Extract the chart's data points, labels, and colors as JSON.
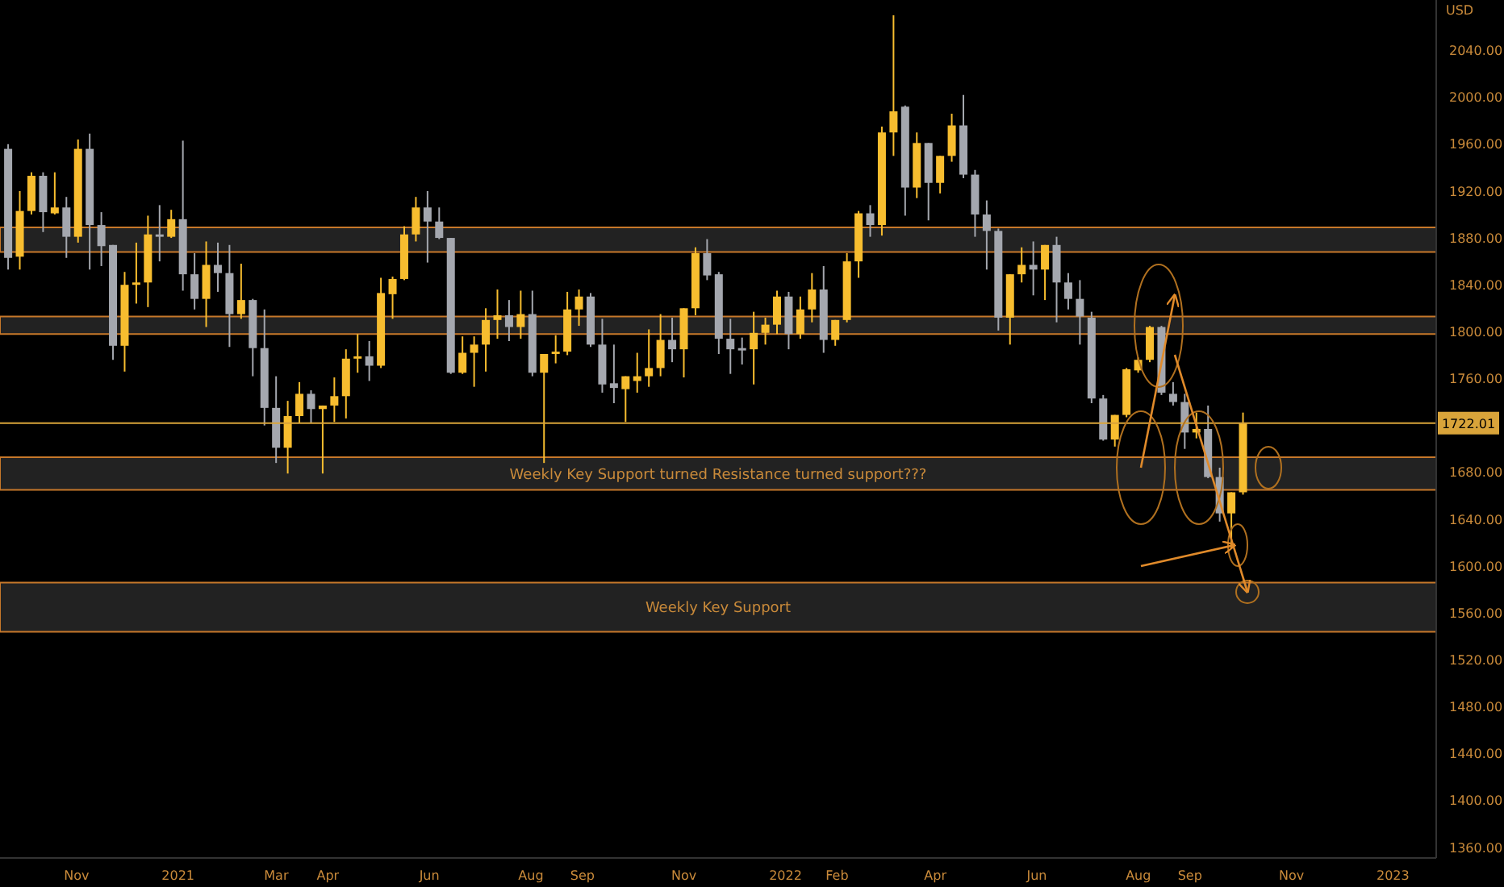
{
  "chart_data": {
    "type": "candlestick",
    "ylabel": "USD",
    "x": [
      "2020-09-21",
      "2020-09-28",
      "2020-10-05",
      "2020-10-12",
      "2020-10-19",
      "2020-10-26",
      "2020-11-02",
      "2020-11-09",
      "2020-11-16",
      "2020-11-23",
      "2020-11-30",
      "2020-12-07",
      "2020-12-14",
      "2020-12-21",
      "2020-12-28",
      "2021-01-04",
      "2021-01-11",
      "2021-01-18",
      "2021-01-25",
      "2021-02-01",
      "2021-02-08",
      "2021-02-15",
      "2021-02-22",
      "2021-03-01",
      "2021-03-08",
      "2021-03-15",
      "2021-03-22",
      "2021-03-29",
      "2021-04-05",
      "2021-04-12",
      "2021-04-19",
      "2021-04-26",
      "2021-05-03",
      "2021-05-10",
      "2021-05-17",
      "2021-05-24",
      "2021-05-31",
      "2021-06-07",
      "2021-06-14",
      "2021-06-21",
      "2021-06-28",
      "2021-07-05",
      "2021-07-12",
      "2021-07-19",
      "2021-07-26",
      "2021-08-02",
      "2021-08-09",
      "2021-08-16",
      "2021-08-23",
      "2021-08-30",
      "2021-09-06",
      "2021-09-13",
      "2021-09-20",
      "2021-09-27",
      "2021-10-04",
      "2021-10-11",
      "2021-10-18",
      "2021-10-25",
      "2021-11-01",
      "2021-11-08",
      "2021-11-15",
      "2021-11-22",
      "2021-11-29",
      "2021-12-06",
      "2021-12-13",
      "2021-12-20",
      "2021-12-27",
      "2022-01-03",
      "2022-01-10",
      "2022-01-17",
      "2022-01-24",
      "2022-01-31",
      "2022-02-07",
      "2022-02-14",
      "2022-02-21",
      "2022-02-28",
      "2022-03-07",
      "2022-03-14",
      "2022-03-21",
      "2022-03-28",
      "2022-04-04",
      "2022-04-11",
      "2022-04-18",
      "2022-04-25",
      "2022-05-02",
      "2022-05-09",
      "2022-05-16",
      "2022-05-23",
      "2022-05-30",
      "2022-06-06",
      "2022-06-13",
      "2022-06-20",
      "2022-06-27",
      "2022-07-04",
      "2022-07-11",
      "2022-07-18",
      "2022-07-25",
      "2022-08-01",
      "2022-08-08",
      "2022-08-15",
      "2022-08-22",
      "2022-08-29",
      "2022-09-05",
      "2022-09-12",
      "2022-09-19",
      "2022-09-26",
      "2022-10-03"
    ],
    "ohlc": [
      [
        1956,
        1960,
        1853,
        1863
      ],
      [
        1864,
        1920,
        1853,
        1903
      ],
      [
        1903,
        1936,
        1900,
        1933
      ],
      [
        1933,
        1936,
        1885,
        1902
      ],
      [
        1901,
        1936,
        1900,
        1906
      ],
      [
        1906,
        1915,
        1863,
        1881
      ],
      [
        1881,
        1964,
        1876,
        1956
      ],
      [
        1956,
        1969,
        1853,
        1891
      ],
      [
        1891,
        1902,
        1856,
        1873
      ],
      [
        1874,
        1874,
        1776,
        1788
      ],
      [
        1788,
        1851,
        1766,
        1840
      ],
      [
        1840,
        1876,
        1824,
        1842
      ],
      [
        1842,
        1899,
        1821,
        1883
      ],
      [
        1883,
        1908,
        1860,
        1881
      ],
      [
        1881,
        1904,
        1880,
        1896
      ],
      [
        1896,
        1963,
        1835,
        1849
      ],
      [
        1849,
        1867,
        1819,
        1828
      ],
      [
        1828,
        1877,
        1804,
        1857
      ],
      [
        1857,
        1876,
        1834,
        1850
      ],
      [
        1850,
        1874,
        1787,
        1815
      ],
      [
        1815,
        1858,
        1811,
        1827
      ],
      [
        1827,
        1828,
        1762,
        1786
      ],
      [
        1786,
        1819,
        1720,
        1735
      ],
      [
        1735,
        1762,
        1688,
        1701
      ],
      [
        1701,
        1741,
        1679,
        1728
      ],
      [
        1728,
        1757,
        1722,
        1747
      ],
      [
        1747,
        1750,
        1722,
        1734
      ],
      [
        1734,
        1737,
        1679,
        1737
      ],
      [
        1737,
        1761,
        1723,
        1745
      ],
      [
        1745,
        1785,
        1726,
        1777
      ],
      [
        1777,
        1798,
        1765,
        1779
      ],
      [
        1779,
        1792,
        1758,
        1771
      ],
      [
        1771,
        1846,
        1769,
        1833
      ],
      [
        1832,
        1847,
        1811,
        1845
      ],
      [
        1845,
        1890,
        1844,
        1883
      ],
      [
        1883,
        1915,
        1877,
        1906
      ],
      [
        1906,
        1920,
        1859,
        1894
      ],
      [
        1894,
        1906,
        1879,
        1880
      ],
      [
        1880,
        1880,
        1764,
        1765
      ],
      [
        1765,
        1796,
        1764,
        1782
      ],
      [
        1782,
        1796,
        1753,
        1789
      ],
      [
        1789,
        1820,
        1766,
        1810
      ],
      [
        1810,
        1836,
        1794,
        1814
      ],
      [
        1814,
        1827,
        1792,
        1804
      ],
      [
        1804,
        1835,
        1794,
        1815
      ],
      [
        1815,
        1835,
        1762,
        1765
      ],
      [
        1765,
        1781,
        1688,
        1781
      ],
      [
        1781,
        1797,
        1773,
        1783
      ],
      [
        1783,
        1834,
        1780,
        1819
      ],
      [
        1819,
        1836,
        1805,
        1830
      ],
      [
        1830,
        1833,
        1787,
        1789
      ],
      [
        1789,
        1811,
        1748,
        1755
      ],
      [
        1756,
        1789,
        1739,
        1752
      ],
      [
        1751,
        1762,
        1723,
        1762
      ],
      [
        1758,
        1782,
        1748,
        1762
      ],
      [
        1762,
        1802,
        1753,
        1769
      ],
      [
        1769,
        1815,
        1762,
        1793
      ],
      [
        1793,
        1812,
        1774,
        1785
      ],
      [
        1785,
        1820,
        1761,
        1820
      ],
      [
        1820,
        1872,
        1814,
        1867
      ],
      [
        1867,
        1879,
        1844,
        1848
      ],
      [
        1849,
        1851,
        1781,
        1794
      ],
      [
        1794,
        1811,
        1764,
        1785
      ],
      [
        1786,
        1795,
        1772,
        1784
      ],
      [
        1785,
        1817,
        1755,
        1799
      ],
      [
        1799,
        1812,
        1789,
        1806
      ],
      [
        1806,
        1835,
        1798,
        1830
      ],
      [
        1830,
        1834,
        1785,
        1798
      ],
      [
        1798,
        1830,
        1794,
        1819
      ],
      [
        1819,
        1850,
        1808,
        1836
      ],
      [
        1836,
        1856,
        1782,
        1793
      ],
      [
        1793,
        1810,
        1788,
        1810
      ],
      [
        1810,
        1867,
        1808,
        1860
      ],
      [
        1860,
        1903,
        1846,
        1901
      ],
      [
        1901,
        1908,
        1881,
        1891
      ],
      [
        1891,
        1975,
        1882,
        1970
      ],
      [
        1970,
        2070,
        1950,
        1988
      ],
      [
        1992,
        1993,
        1899,
        1923
      ],
      [
        1923,
        1970,
        1914,
        1961
      ],
      [
        1961,
        1961,
        1895,
        1927
      ],
      [
        1927,
        1950,
        1918,
        1950
      ],
      [
        1950,
        1986,
        1945,
        1976
      ],
      [
        1976,
        2002,
        1931,
        1934
      ],
      [
        1934,
        1938,
        1881,
        1900
      ],
      [
        1900,
        1912,
        1853,
        1886
      ],
      [
        1886,
        1888,
        1801,
        1812
      ],
      [
        1812,
        1849,
        1789,
        1849
      ],
      [
        1849,
        1872,
        1842,
        1857
      ],
      [
        1857,
        1877,
        1831,
        1853
      ],
      [
        1853,
        1874,
        1827,
        1874
      ],
      [
        1874,
        1881,
        1808,
        1842
      ],
      [
        1842,
        1850,
        1819,
        1828
      ],
      [
        1828,
        1844,
        1789,
        1813
      ],
      [
        1812,
        1817,
        1739,
        1743
      ],
      [
        1743,
        1746,
        1707,
        1708
      ],
      [
        1708,
        1729,
        1702,
        1729
      ],
      [
        1729,
        1769,
        1727,
        1768
      ],
      [
        1767,
        1778,
        1765,
        1776
      ],
      [
        1776,
        1805,
        1774,
        1804
      ],
      [
        1804,
        1805,
        1746,
        1748
      ],
      [
        1747,
        1757,
        1737,
        1740
      ],
      [
        1740,
        1747,
        1700,
        1714
      ],
      [
        1714,
        1731,
        1709,
        1717
      ],
      [
        1717,
        1737,
        1675,
        1676
      ],
      [
        1676,
        1684,
        1638,
        1645
      ],
      [
        1645,
        1663,
        1615,
        1663
      ],
      [
        1663,
        1731,
        1661,
        1722
      ]
    ],
    "colors": [
      "#a4a7ae",
      "#f7bd2f",
      "#f7bd2f",
      "#a4a7ae",
      "#f7bd2f",
      "#a4a7ae",
      "#f7bd2f",
      "#a4a7ae",
      "#a4a7ae",
      "#a4a7ae",
      "#f7bd2f",
      "#f7bd2f",
      "#f7bd2f",
      "#a4a7ae",
      "#f7bd2f",
      "#a4a7ae",
      "#a4a7ae",
      "#f7bd2f",
      "#a4a7ae",
      "#a4a7ae",
      "#f7bd2f",
      "#a4a7ae",
      "#a4a7ae",
      "#a4a7ae",
      "#f7bd2f",
      "#f7bd2f",
      "#a4a7ae",
      "#f7bd2f",
      "#f7bd2f",
      "#f7bd2f",
      "#f7bd2f",
      "#a4a7ae",
      "#f7bd2f",
      "#f7bd2f",
      "#f7bd2f",
      "#f7bd2f",
      "#a4a7ae",
      "#a4a7ae",
      "#a4a7ae",
      "#f7bd2f",
      "#f7bd2f",
      "#f7bd2f",
      "#f7bd2f",
      "#a4a7ae",
      "#f7bd2f",
      "#a4a7ae",
      "#f7bd2f",
      "#f7bd2f",
      "#f7bd2f",
      "#f7bd2f",
      "#a4a7ae",
      "#a4a7ae",
      "#a4a7ae",
      "#f7bd2f",
      "#f7bd2f",
      "#f7bd2f",
      "#f7bd2f",
      "#a4a7ae",
      "#f7bd2f",
      "#f7bd2f",
      "#a4a7ae",
      "#a4a7ae",
      "#a4a7ae",
      "#a4a7ae",
      "#f7bd2f",
      "#f7bd2f",
      "#f7bd2f",
      "#a4a7ae",
      "#f7bd2f",
      "#f7bd2f",
      "#a4a7ae",
      "#f7bd2f",
      "#f7bd2f",
      "#f7bd2f",
      "#a4a7ae",
      "#f7bd2f",
      "#f7bd2f",
      "#a4a7ae",
      "#f7bd2f",
      "#a4a7ae",
      "#f7bd2f",
      "#f7bd2f",
      "#a4a7ae",
      "#a4a7ae",
      "#a4a7ae",
      "#a4a7ae",
      "#f7bd2f",
      "#f7bd2f",
      "#a4a7ae",
      "#f7bd2f",
      "#a4a7ae",
      "#a4a7ae",
      "#a4a7ae",
      "#a4a7ae",
      "#a4a7ae",
      "#f7bd2f",
      "#f7bd2f",
      "#f7bd2f",
      "#f7bd2f",
      "#a4a7ae",
      "#a4a7ae",
      "#a4a7ae",
      "#f7bd2f",
      "#a4a7ae",
      "#a4a7ae",
      "#f7bd2f",
      "#f7bd2f"
    ],
    "xlim": [
      "2020-09-16",
      "2023-01-27"
    ],
    "xticks": [
      {
        "value": "2020-11-01",
        "label": "Nov"
      },
      {
        "value": "2021-01-01",
        "label": "2021"
      },
      {
        "value": "2021-03-01",
        "label": "Mar"
      },
      {
        "value": "2021-04-01",
        "label": "Apr"
      },
      {
        "value": "2021-06-01",
        "label": "Jun"
      },
      {
        "value": "2021-08-01",
        "label": "Aug"
      },
      {
        "value": "2021-09-01",
        "label": "Sep"
      },
      {
        "value": "2021-11-01",
        "label": "Nov"
      },
      {
        "value": "2022-01-01",
        "label": "2022"
      },
      {
        "value": "2022-02-01",
        "label": "Feb"
      },
      {
        "value": "2022-04-01",
        "label": "Apr"
      },
      {
        "value": "2022-06-01",
        "label": "Jun"
      },
      {
        "value": "2022-08-01",
        "label": "Aug"
      },
      {
        "value": "2022-09-01",
        "label": "Sep"
      },
      {
        "value": "2022-11-01",
        "label": "Nov"
      },
      {
        "value": "2023-01-01",
        "label": "2023"
      }
    ],
    "ylim": [
      1351,
      2083
    ],
    "yticks": [
      {
        "value": 1360,
        "label": "1360.00"
      },
      {
        "value": 1400,
        "label": "1400.00"
      },
      {
        "value": 1440,
        "label": "1440.00"
      },
      {
        "value": 1480,
        "label": "1480.00"
      },
      {
        "value": 1520,
        "label": "1520.00"
      },
      {
        "value": 1560,
        "label": "1560.00"
      },
      {
        "value": 1600,
        "label": "1600.00"
      },
      {
        "value": 1640,
        "label": "1640.00"
      },
      {
        "value": 1680,
        "label": "1680.00"
      },
      {
        "value": 1760,
        "label": "1760.00"
      },
      {
        "value": 1800,
        "label": "1800.00"
      },
      {
        "value": 1840,
        "label": "1840.00"
      },
      {
        "value": 1880,
        "label": "1880.00"
      },
      {
        "value": 1920,
        "label": "1920.00"
      },
      {
        "value": 1960,
        "label": "1960.00"
      },
      {
        "value": 2000,
        "label": "2000.00"
      },
      {
        "value": 2040,
        "label": "2040.00"
      }
    ],
    "ref_lines": [
      {
        "axis": "y",
        "value": 1722.01,
        "label": "1722.01",
        "color": "#d9a43a"
      }
    ],
    "bands": [
      {
        "axis": "y",
        "from": 1868,
        "to": 1889,
        "label": null,
        "color": "#c7782a"
      },
      {
        "axis": "y",
        "from": 1798,
        "to": 1813,
        "label": null,
        "color": "#c7782a"
      },
      {
        "axis": "y",
        "from": 1665,
        "to": 1693,
        "label": "Weekly Key Support turned Resistance turned support???",
        "color": "#c7782a"
      },
      {
        "axis": "y",
        "from": 1544,
        "to": 1586,
        "label": "Weekly Key Support",
        "color": "#c7782a"
      }
    ]
  }
}
